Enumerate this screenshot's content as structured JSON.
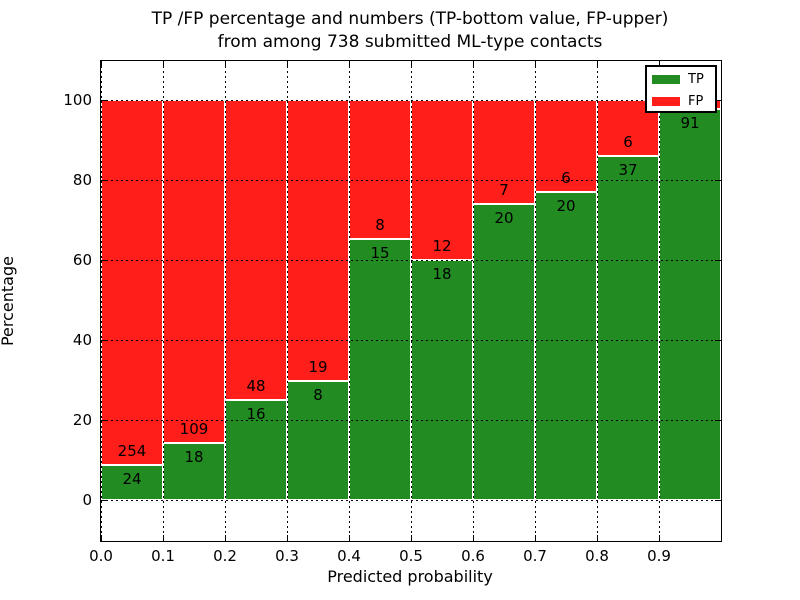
{
  "figure": {
    "title_line1": "TP /FP percentage and numbers (TP-bottom value, FP-upper)",
    "title_line2": "from among 738 submitted ML-type contacts",
    "xlabel": "Predicted probability",
    "ylabel": "Percentage"
  },
  "legend": {
    "position": "upper right",
    "items": [
      {
        "label": "TP",
        "color": "#228b22"
      },
      {
        "label": "FP",
        "color": "#ff1e19"
      }
    ]
  },
  "chart_data": {
    "type": "bar",
    "stacked": true,
    "title": "TP /FP percentage and numbers (TP-bottom value, FP-upper) from among 738 submitted ML-type contacts",
    "xlabel": "Predicted probability",
    "ylabel": "Percentage",
    "total_contacts_in_title": 738,
    "bin_width": 0.1,
    "x_bin_starts": [
      0.0,
      0.1,
      0.2,
      0.3,
      0.4,
      0.5,
      0.6,
      0.7,
      0.8,
      0.9
    ],
    "x_tick_labels": [
      "0.0",
      "0.1",
      "0.2",
      "0.3",
      "0.4",
      "0.5",
      "0.6",
      "0.7",
      "0.8",
      "0.9"
    ],
    "y_ticks": [
      0,
      20,
      40,
      60,
      80,
      100
    ],
    "ylim": [
      -10,
      110
    ],
    "grid": true,
    "series": [
      {
        "name": "TP",
        "color": "#228b22",
        "counts": [
          24,
          18,
          16,
          8,
          15,
          18,
          20,
          20,
          37,
          91
        ]
      },
      {
        "name": "FP",
        "color": "#ff1e19",
        "counts": [
          254,
          109,
          48,
          19,
          8,
          12,
          7,
          6,
          6,
          null
        ]
      }
    ],
    "tp_percent": [
      8.63,
      14.17,
      25.0,
      29.63,
      65.22,
      60.0,
      74.07,
      76.92,
      86.05,
      97.85
    ]
  }
}
